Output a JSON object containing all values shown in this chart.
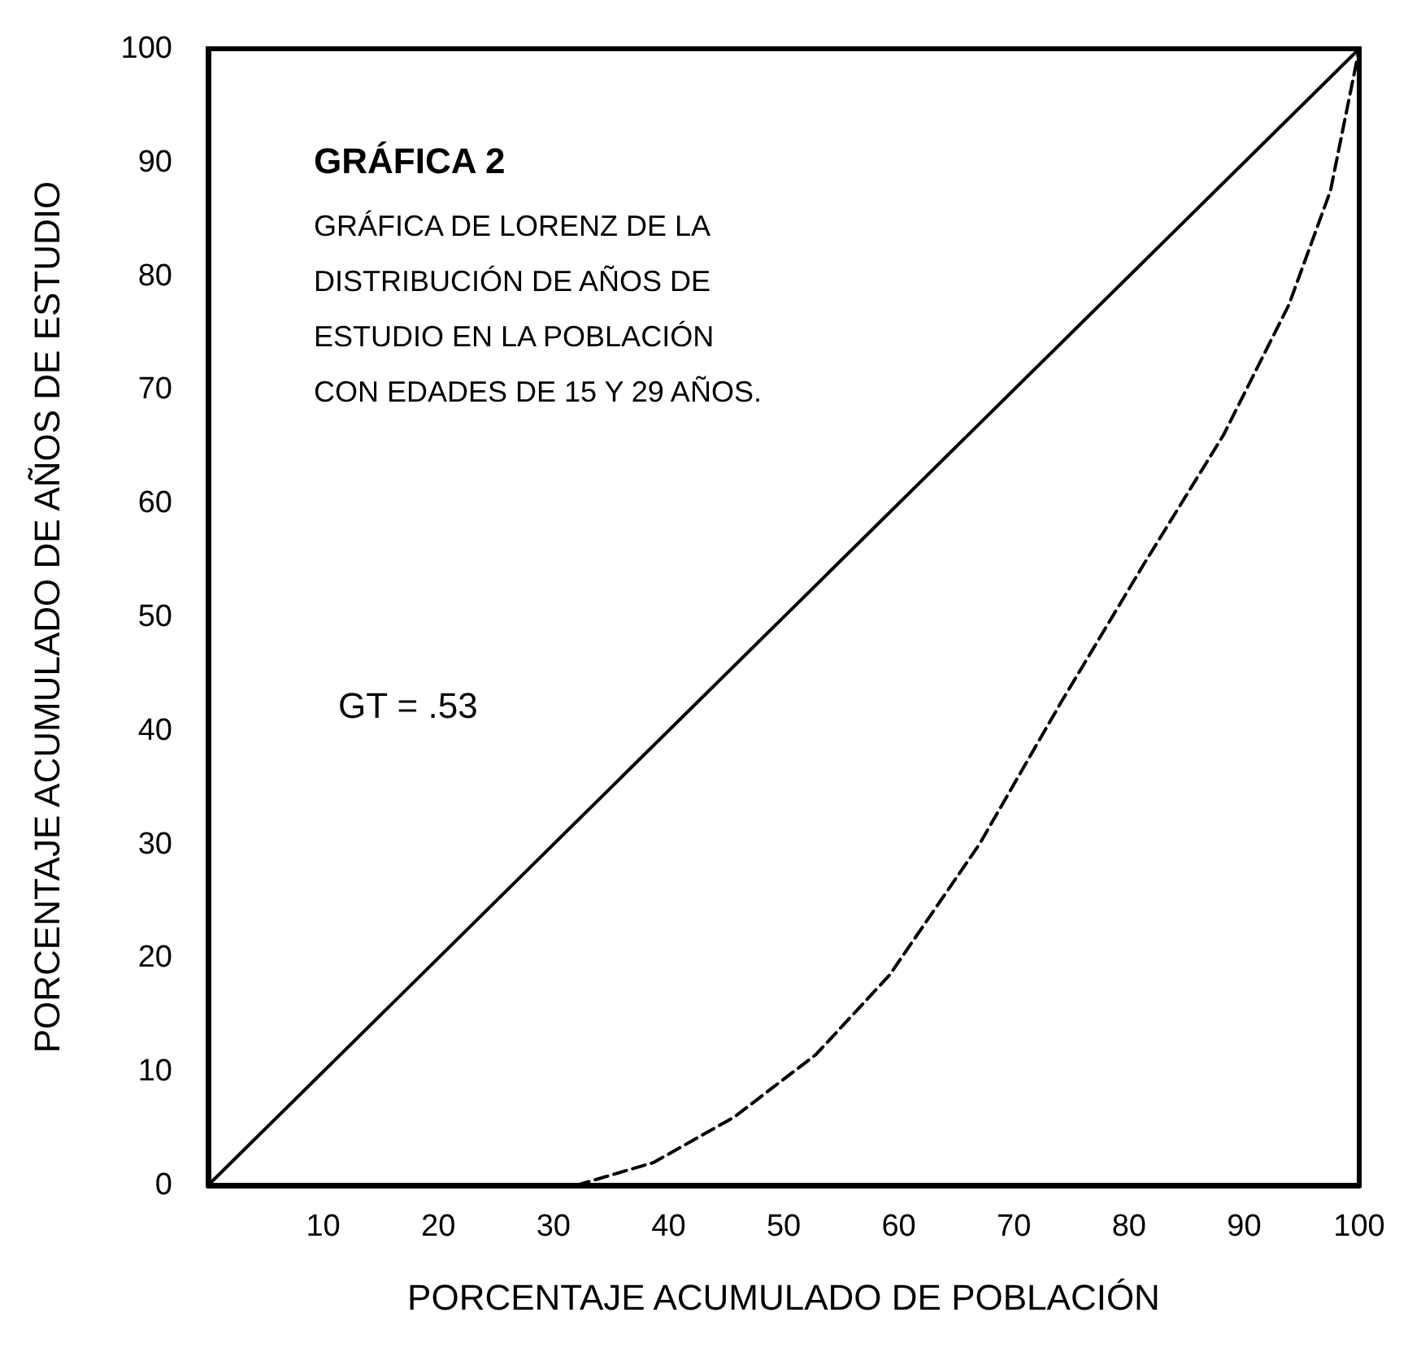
{
  "chart_data": {
    "type": "line",
    "title": "GRÁFICA 2",
    "subtitle": "GRÁFICA DE LORENZ DE LA DISTRIBUCIÓN DE AÑOS DE ESTUDIO EN LA POBLACIÓN CON EDADES DE 15 Y 29 AÑOS.",
    "xlabel": "PORCENTAJE ACUMULADO DE POBLACIÓN",
    "ylabel": "PORCENTAJE ACUMULADO DE AÑOS DE ESTUDIO",
    "annotations": [
      "GT = .53"
    ],
    "series": [
      {
        "color": "#000000",
        "line_style": "solid",
        "x": [
          0,
          100
        ],
        "values": [
          0,
          100
        ]
      },
      {
        "color": "#000000",
        "line_style": "dashed",
        "x": [
          32,
          38.7,
          45.7,
          52.8,
          59.2,
          67,
          74.1,
          81.2,
          88.2,
          93.9,
          97.5,
          100
        ],
        "values": [
          0,
          2,
          6,
          11.5,
          18.5,
          30,
          42.5,
          54.5,
          66,
          77.5,
          87.5,
          100
        ]
      }
    ],
    "xlim": [
      0,
      100
    ],
    "xticks": [
      10,
      20,
      30,
      40,
      50,
      60,
      70,
      80,
      90,
      100
    ],
    "ylim": [
      0,
      100
    ],
    "yticks": [
      0,
      10,
      20,
      30,
      40,
      50,
      60,
      70,
      80,
      90,
      100
    ],
    "grid": false,
    "marker": "none"
  }
}
